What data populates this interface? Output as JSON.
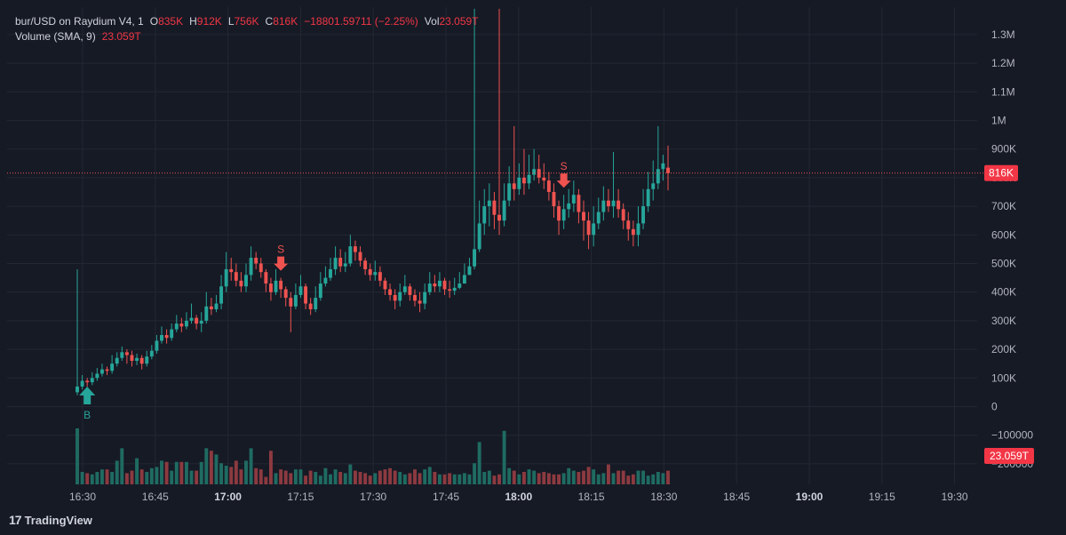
{
  "legend": {
    "symbol": "bur/USD on Raydium V4, 1",
    "o_label": "O",
    "o_value": "835K",
    "h_label": "H",
    "h_value": "912K",
    "l_label": "L",
    "l_value": "756K",
    "c_label": "C",
    "c_value": "816K",
    "change": "−18801.59711 (−2.25%)",
    "vol_label": "Vol",
    "vol_value": "23.059T",
    "volume_title": "Volume (SMA, 9)",
    "volume_value": "23.059T"
  },
  "brand": {
    "logo": "17",
    "name": "TradingView"
  },
  "chart_data": {
    "type": "candlestick",
    "y_ticks": [
      "1.3M",
      "1.2M",
      "1.1M",
      "1M",
      "900K",
      "800K",
      "700K",
      "600K",
      "500K",
      "400K",
      "300K",
      "200K",
      "100K",
      "0",
      "−100000",
      "−200000"
    ],
    "x_ticks": [
      {
        "label": "16:30",
        "bold": false
      },
      {
        "label": "16:45",
        "bold": false
      },
      {
        "label": "17:00",
        "bold": true
      },
      {
        "label": "17:15",
        "bold": false
      },
      {
        "label": "17:30",
        "bold": false
      },
      {
        "label": "17:45",
        "bold": false
      },
      {
        "label": "18:00",
        "bold": true
      },
      {
        "label": "18:15",
        "bold": false
      },
      {
        "label": "18:30",
        "bold": false
      },
      {
        "label": "18:45",
        "bold": false
      },
      {
        "label": "19:00",
        "bold": true
      },
      {
        "label": "19:15",
        "bold": false
      },
      {
        "label": "19:30",
        "bold": false
      }
    ],
    "price_tag": "816K",
    "volume_tag": "23.059T",
    "last_price": 816000,
    "ylim": [
      -270000,
      1400000
    ],
    "colors": {
      "up": "#26a69a",
      "down": "#ef5350",
      "up_vol": "#1f6b62",
      "down_vol": "#8c3a40",
      "grid": "#232733",
      "axis_text": "#b2b5be"
    },
    "close": [
      70000,
      90000,
      85000,
      100000,
      115000,
      130000,
      125000,
      150000,
      170000,
      190000,
      180000,
      160000,
      170000,
      150000,
      175000,
      195000,
      230000,
      250000,
      240000,
      270000,
      290000,
      280000,
      300000,
      310000,
      290000,
      300000,
      350000,
      340000,
      360000,
      420000,
      480000,
      470000,
      440000,
      420000,
      460000,
      520000,
      500000,
      470000,
      430000,
      400000,
      440000,
      410000,
      380000,
      350000,
      390000,
      420000,
      360000,
      340000,
      380000,
      430000,
      450000,
      480000,
      520000,
      490000,
      500000,
      560000,
      540000,
      510000,
      480000,
      460000,
      470000,
      440000,
      410000,
      390000,
      370000,
      400000,
      420000,
      390000,
      370000,
      360000,
      400000,
      430000,
      420000,
      440000,
      410000,
      405000,
      415000,
      430000,
      460000,
      490000,
      550000,
      640000,
      700000,
      720000,
      670000,
      650000,
      720000,
      780000,
      760000,
      800000,
      780000,
      810000,
      830000,
      800000,
      790000,
      750000,
      700000,
      650000,
      690000,
      710000,
      740000,
      680000,
      650000,
      600000,
      640000,
      680000,
      720000,
      700000,
      720000,
      690000,
      650000,
      620000,
      600000,
      640000,
      700000,
      760000,
      780000,
      830000,
      850000,
      816000
    ],
    "open": [
      50000,
      70000,
      90000,
      85000,
      100000,
      115000,
      130000,
      125000,
      150000,
      170000,
      190000,
      180000,
      160000,
      170000,
      150000,
      175000,
      195000,
      230000,
      250000,
      240000,
      270000,
      290000,
      280000,
      300000,
      310000,
      290000,
      300000,
      350000,
      340000,
      360000,
      420000,
      480000,
      470000,
      440000,
      420000,
      460000,
      520000,
      500000,
      470000,
      430000,
      400000,
      440000,
      410000,
      380000,
      350000,
      390000,
      420000,
      360000,
      340000,
      380000,
      430000,
      450000,
      480000,
      520000,
      490000,
      500000,
      560000,
      540000,
      510000,
      480000,
      460000,
      470000,
      440000,
      410000,
      390000,
      370000,
      400000,
      420000,
      390000,
      370000,
      360000,
      400000,
      430000,
      420000,
      440000,
      410000,
      405000,
      415000,
      430000,
      460000,
      490000,
      550000,
      640000,
      700000,
      720000,
      670000,
      650000,
      720000,
      780000,
      760000,
      800000,
      780000,
      810000,
      830000,
      800000,
      790000,
      750000,
      700000,
      650000,
      690000,
      710000,
      740000,
      680000,
      650000,
      600000,
      640000,
      680000,
      720000,
      700000,
      720000,
      690000,
      650000,
      620000,
      600000,
      640000,
      700000,
      760000,
      780000,
      830000,
      835000
    ],
    "high": [
      480000,
      110000,
      100000,
      120000,
      135000,
      150000,
      140000,
      180000,
      190000,
      210000,
      200000,
      195000,
      185000,
      180000,
      195000,
      215000,
      250000,
      280000,
      270000,
      290000,
      320000,
      310000,
      330000,
      360000,
      320000,
      330000,
      400000,
      380000,
      390000,
      460000,
      540000,
      520000,
      500000,
      470000,
      500000,
      560000,
      540000,
      520000,
      480000,
      450000,
      480000,
      450000,
      420000,
      400000,
      430000,
      460000,
      430000,
      380000,
      420000,
      470000,
      490000,
      520000,
      560000,
      550000,
      540000,
      600000,
      580000,
      560000,
      520000,
      500000,
      510000,
      490000,
      450000,
      430000,
      410000,
      430000,
      460000,
      430000,
      410000,
      400000,
      430000,
      470000,
      460000,
      470000,
      450000,
      440000,
      450000,
      470000,
      500000,
      520000,
      1390000,
      720000,
      760000,
      780000,
      750000,
      1390000,
      780000,
      840000,
      980000,
      850000,
      900000,
      880000,
      900000,
      880000,
      850000,
      820000,
      780000,
      720000,
      740000,
      760000,
      790000,
      760000,
      720000,
      680000,
      700000,
      730000,
      770000,
      760000,
      890000,
      760000,
      710000,
      680000,
      650000,
      700000,
      760000,
      820000,
      860000,
      980000,
      880000,
      912000
    ],
    "low": [
      40000,
      60000,
      70000,
      75000,
      90000,
      105000,
      110000,
      115000,
      140000,
      160000,
      150000,
      140000,
      145000,
      130000,
      140000,
      165000,
      185000,
      220000,
      220000,
      230000,
      260000,
      260000,
      270000,
      290000,
      270000,
      260000,
      290000,
      320000,
      330000,
      340000,
      400000,
      440000,
      420000,
      400000,
      400000,
      440000,
      480000,
      450000,
      400000,
      370000,
      390000,
      380000,
      350000,
      260000,
      340000,
      380000,
      340000,
      320000,
      330000,
      370000,
      420000,
      440000,
      460000,
      470000,
      470000,
      490000,
      510000,
      490000,
      460000,
      440000,
      440000,
      420000,
      390000,
      370000,
      340000,
      350000,
      390000,
      370000,
      350000,
      330000,
      340000,
      390000,
      400000,
      400000,
      390000,
      380000,
      390000,
      410000,
      430000,
      460000,
      480000,
      540000,
      600000,
      630000,
      620000,
      600000,
      630000,
      700000,
      720000,
      740000,
      740000,
      760000,
      790000,
      780000,
      760000,
      720000,
      660000,
      600000,
      620000,
      660000,
      680000,
      640000,
      580000,
      550000,
      560000,
      620000,
      650000,
      680000,
      660000,
      660000,
      620000,
      580000,
      560000,
      560000,
      620000,
      680000,
      720000,
      760000,
      790000,
      756000
    ],
    "volume": [
      0.45,
      0.1,
      0.09,
      0.08,
      0.1,
      0.12,
      0.12,
      0.1,
      0.19,
      0.29,
      0.09,
      0.11,
      0.21,
      0.12,
      0.1,
      0.13,
      0.14,
      0.19,
      0.18,
      0.11,
      0.18,
      0.18,
      0.18,
      0.11,
      0.11,
      0.18,
      0.29,
      0.27,
      0.24,
      0.17,
      0.15,
      0.14,
      0.19,
      0.12,
      0.19,
      0.29,
      0.13,
      0.12,
      0.06,
      0.27,
      0.09,
      0.12,
      0.11,
      0.09,
      0.12,
      0.12,
      0.07,
      0.11,
      0.1,
      0.07,
      0.13,
      0.08,
      0.12,
      0.1,
      0.09,
      0.16,
      0.11,
      0.1,
      0.09,
      0.07,
      0.09,
      0.11,
      0.12,
      0.13,
      0.11,
      0.1,
      0.08,
      0.09,
      0.12,
      0.09,
      0.12,
      0.14,
      0.1,
      0.08,
      0.08,
      0.09,
      0.08,
      0.08,
      0.09,
      0.08,
      0.17,
      0.34,
      0.1,
      0.11,
      0.07,
      0.08,
      0.43,
      0.13,
      0.11,
      0.08,
      0.1,
      0.12,
      0.11,
      0.09,
      0.1,
      0.09,
      0.08,
      0.08,
      0.09,
      0.13,
      0.11,
      0.1,
      0.11,
      0.14,
      0.12,
      0.08,
      0.09,
      0.16,
      0.09,
      0.11,
      0.11,
      0.07,
      0.08,
      0.11,
      0.11,
      0.07,
      0.08,
      0.1,
      0.09,
      0.11
    ],
    "signals": [
      {
        "index": 2,
        "label": "B",
        "side": "buy"
      },
      {
        "index": 41,
        "label": "S",
        "side": "sell"
      },
      {
        "index": 98,
        "label": "S",
        "side": "sell"
      },
      {
        "index": 120,
        "label": "S",
        "side": "sell"
      }
    ]
  }
}
